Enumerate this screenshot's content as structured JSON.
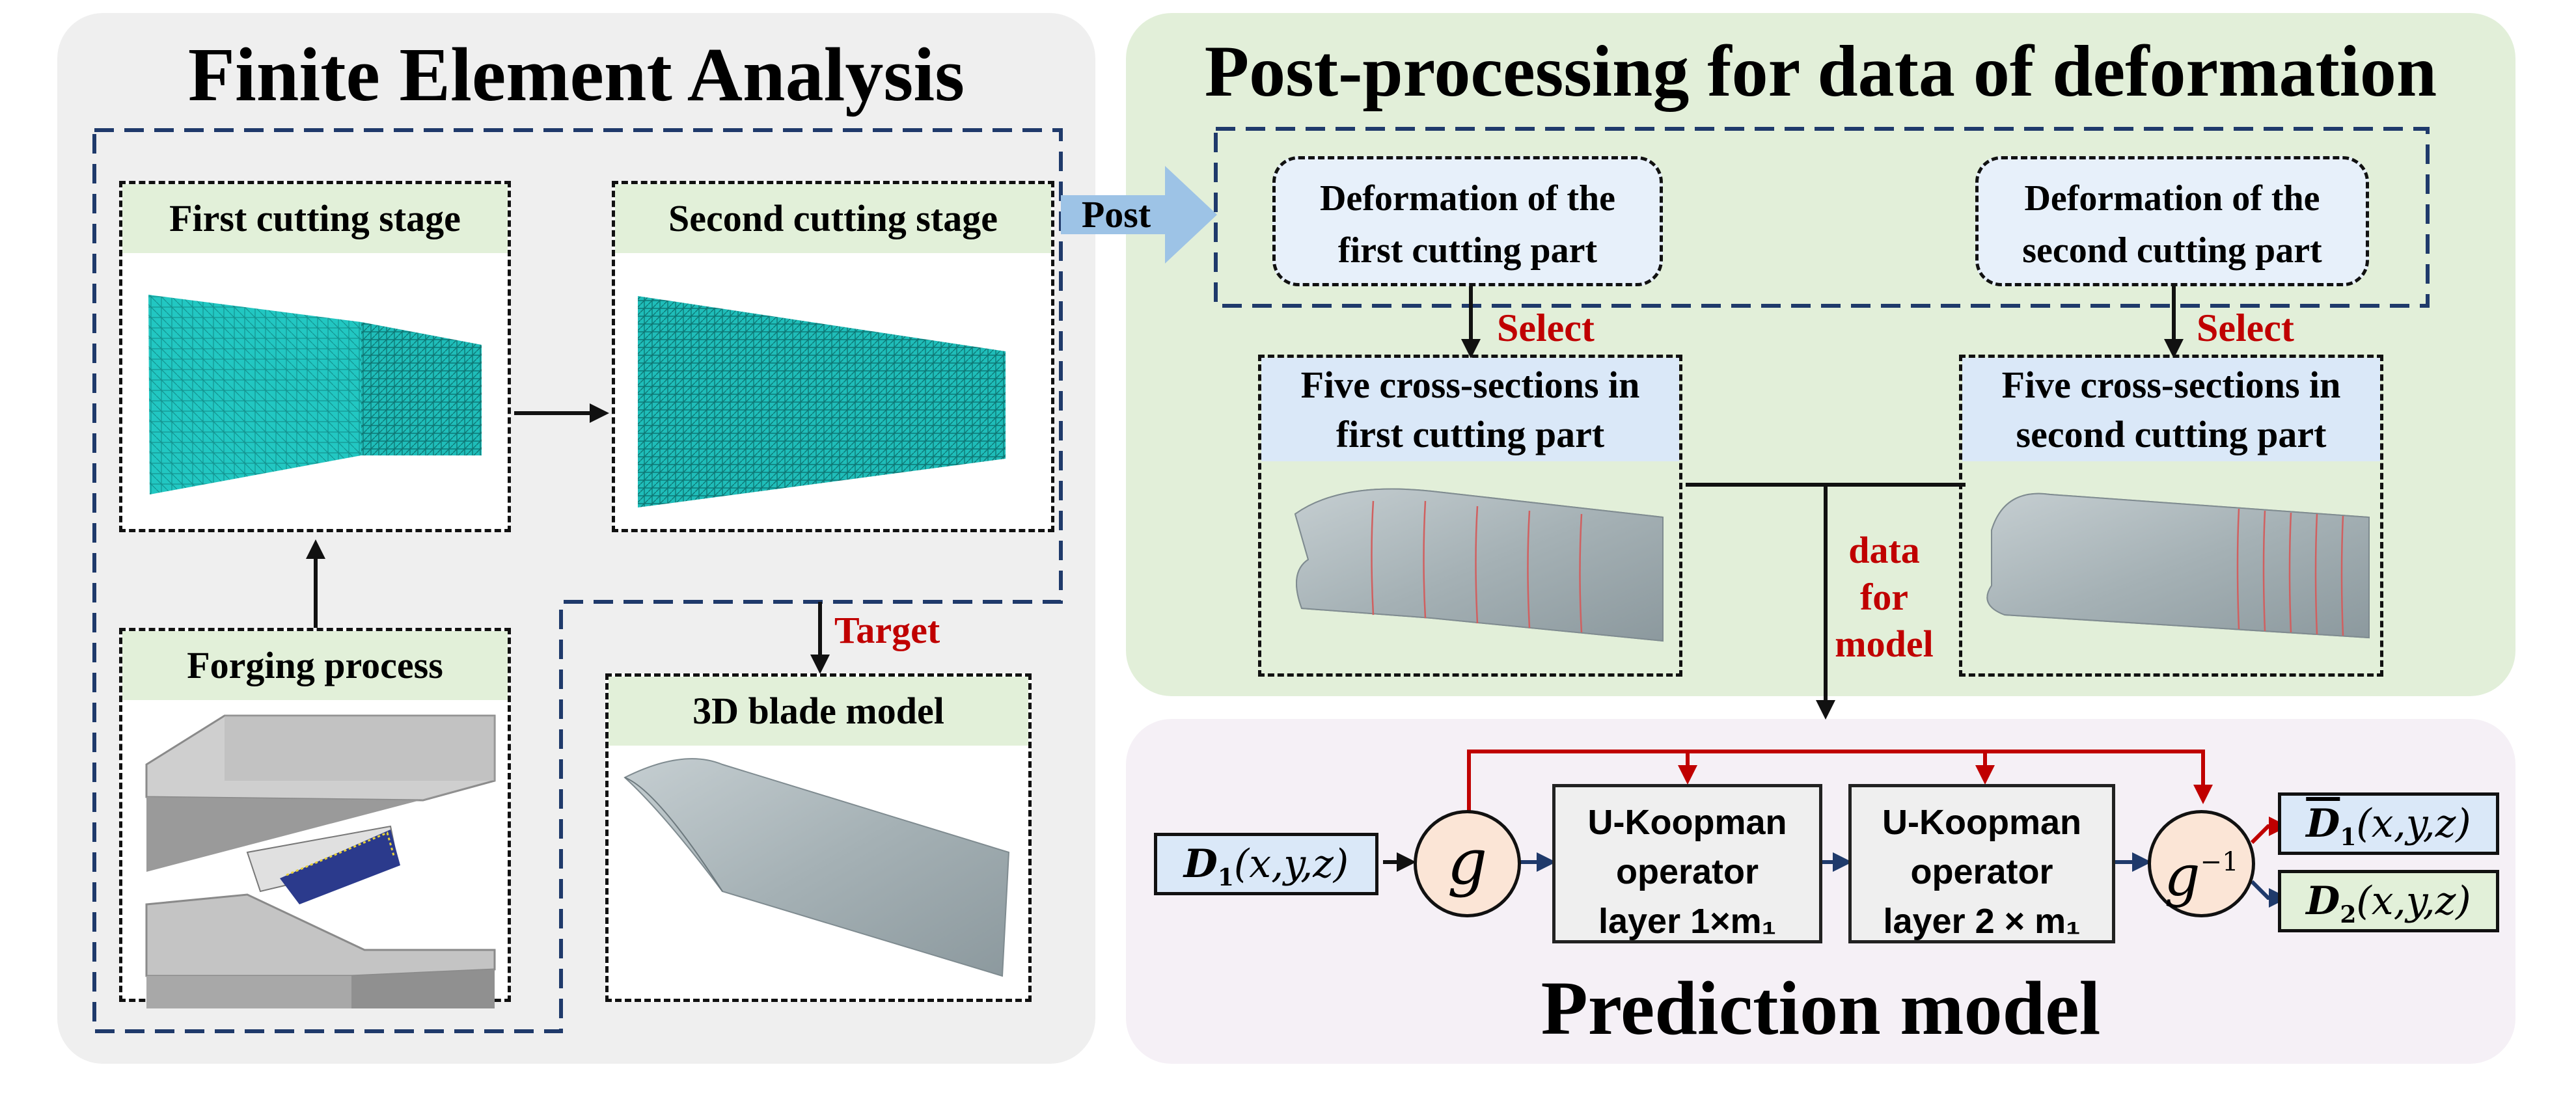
{
  "fea": {
    "title": "Finite Element Analysis",
    "first_stage": "First cutting stage",
    "second_stage": "Second cutting stage",
    "forging": "Forging process",
    "blade": "3D blade model",
    "target_label": "Target"
  },
  "post": {
    "title": "Post-processing for data of deformation",
    "arrow_label": "Post",
    "def_first": [
      "Deformation of the",
      "first cutting part"
    ],
    "def_second": [
      "Deformation of the",
      "second cutting part"
    ],
    "select_label": "Select",
    "cs_first": [
      "Five cross-sections in",
      "first cutting part"
    ],
    "cs_second": [
      "Five cross-sections in",
      "second cutting part"
    ],
    "data_label": [
      "data",
      "for",
      "model"
    ]
  },
  "model": {
    "title": "Prediction model",
    "input": {
      "symbol": "D",
      "sub": "1",
      "args": "(x,y,z)"
    },
    "g": "g",
    "g_inv": "g",
    "g_inv_sup": "−1",
    "layer1": [
      "U-Koopman",
      "operator",
      "layer 1×m₁"
    ],
    "layer2": [
      "U-Koopman",
      "operator",
      "layer 2 × m₁"
    ],
    "out_pred": {
      "symbol": "D",
      "sub": "1",
      "args": "(x,y,z)"
    },
    "out_true": {
      "symbol": "D",
      "sub": "2",
      "args": "(x,y,z)"
    }
  },
  "colors": {
    "fea_panel": "#efefef",
    "post_panel": "#e2efd9",
    "model_panel": "#f5f0f6",
    "navy_dash": "#1f3a6b",
    "red": "#c00000",
    "mesh": "#22c7c2",
    "blade": "#a9b4b8"
  }
}
